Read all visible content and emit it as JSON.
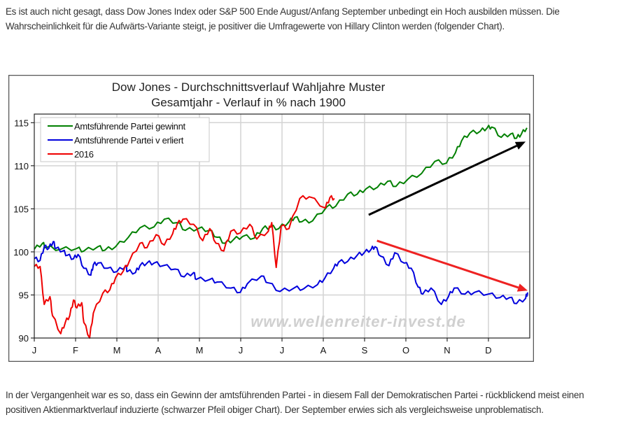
{
  "article": {
    "paragraph_1": "Es ist auch nicht gesagt, dass Dow Jones Index oder S&P 500 Ende August/Anfang September unbedingt ein Hoch ausbilden müssen. Die Wahrscheinlichkeit für die Aufwärts-Variante steigt, je positiver die Umfragewerte von Hillary Clinton werden (folgender Chart).",
    "paragraph_2": "In der Vergangenheit war es so, dass ein Gewinn der amtsführenden Partei - in diesem Fall der Demokratischen Partei - rückblickend meist einen positiven Aktienmarktverlauf induzierte (schwarzer Pfeil obiger Chart). Der September erwies sich als vergleichsweise unproblematisch."
  },
  "chart_data": {
    "type": "line",
    "title": [
      "Dow Jones - Durchschnittsverlauf Wahljahre Muster",
      "Gesamtjahr - Verlauf in % nach 1900"
    ],
    "xlabel": "",
    "ylabel": "",
    "x_tick_labels": [
      "J",
      "F",
      "M",
      "A",
      "M",
      "J",
      "J",
      "A",
      "S",
      "O",
      "N",
      "D"
    ],
    "xlim": [
      0,
      12
    ],
    "ylim": [
      90,
      116
    ],
    "y_ticks": [
      90,
      95,
      100,
      105,
      110,
      115
    ],
    "grid": true,
    "legend_placement": "top-left",
    "watermark": "www.wellenreiter-invest.de",
    "series": [
      {
        "name": "Amtsführende Partei gewinnt",
        "color": "#008000",
        "points": [
          [
            0,
            100.3
          ],
          [
            0.2,
            101
          ],
          [
            0.28,
            100.5
          ],
          [
            0.64,
            100.3
          ],
          [
            1.03,
            100.4
          ],
          [
            1.2,
            100.1
          ],
          [
            1.54,
            100.6
          ],
          [
            1.71,
            100.2
          ],
          [
            1.97,
            100.6
          ],
          [
            2.28,
            101.7
          ],
          [
            2.56,
            102.8
          ],
          [
            2.9,
            102.9
          ],
          [
            3.15,
            103.8
          ],
          [
            3.46,
            103.4
          ],
          [
            3.66,
            102.5
          ],
          [
            3.97,
            102.7
          ],
          [
            4.23,
            102.5
          ],
          [
            4.43,
            101.7
          ],
          [
            4.62,
            101
          ],
          [
            4.82,
            101.4
          ],
          [
            5.05,
            101.8
          ],
          [
            5.33,
            101.6
          ],
          [
            5.53,
            102.7
          ],
          [
            5.72,
            102.9
          ],
          [
            5.92,
            102.7
          ],
          [
            6.17,
            103.5
          ],
          [
            6.31,
            104
          ],
          [
            6.48,
            103.5
          ],
          [
            6.74,
            103.6
          ],
          [
            7.08,
            105.2
          ],
          [
            7.3,
            105.3
          ],
          [
            7.59,
            106.7
          ],
          [
            7.82,
            106.7
          ],
          [
            8.03,
            107.3
          ],
          [
            8.31,
            107.5
          ],
          [
            8.56,
            108.2
          ],
          [
            8.76,
            107.6
          ],
          [
            9.04,
            108.4
          ],
          [
            9.38,
            109.1
          ],
          [
            9.7,
            110.5
          ],
          [
            9.98,
            110.3
          ],
          [
            10.2,
            111.5
          ],
          [
            10.35,
            112.9
          ],
          [
            10.55,
            113.8
          ],
          [
            10.8,
            114
          ],
          [
            10.97,
            114.4
          ],
          [
            11.08,
            114.5
          ],
          [
            11.31,
            113.3
          ],
          [
            11.54,
            113.7
          ],
          [
            11.68,
            113.2
          ],
          [
            11.8,
            113.7
          ],
          [
            11.93,
            114.4
          ]
        ]
      },
      {
        "name": "Amtsführende Partei v erliert",
        "color": "#0000dd",
        "points": [
          [
            0,
            99.2
          ],
          [
            0.14,
            99
          ],
          [
            0.24,
            100.6
          ],
          [
            0.35,
            100.4
          ],
          [
            0.46,
            101.2
          ],
          [
            0.52,
            100.4
          ],
          [
            0.69,
            100.1
          ],
          [
            0.8,
            99.6
          ],
          [
            0.95,
            99.2
          ],
          [
            1.06,
            99.7
          ],
          [
            1.2,
            98.1
          ],
          [
            1.37,
            97.3
          ],
          [
            1.43,
            98.5
          ],
          [
            1.54,
            98.7
          ],
          [
            1.77,
            98.1
          ],
          [
            2,
            97.7
          ],
          [
            2.22,
            98.4
          ],
          [
            2.25,
            97.7
          ],
          [
            2.45,
            97.6
          ],
          [
            2.56,
            98.4
          ],
          [
            2.73,
            98.7
          ],
          [
            2.9,
            98.7
          ],
          [
            3.12,
            98.4
          ],
          [
            3.41,
            98
          ],
          [
            3.63,
            97.1
          ],
          [
            3.86,
            97.6
          ],
          [
            3.92,
            96.8
          ],
          [
            4.25,
            96.8
          ],
          [
            4.43,
            96.5
          ],
          [
            4.76,
            95.8
          ],
          [
            4.99,
            95.3
          ],
          [
            5.16,
            96.3
          ],
          [
            5.5,
            97.2
          ],
          [
            5.67,
            96.4
          ],
          [
            5.95,
            95.4
          ],
          [
            6.29,
            95.8
          ],
          [
            6.52,
            95.7
          ],
          [
            6.86,
            96.2
          ],
          [
            7.03,
            96.9
          ],
          [
            7.25,
            98.1
          ],
          [
            7.37,
            98.8
          ],
          [
            7.59,
            98.9
          ],
          [
            7.82,
            99.6
          ],
          [
            7.99,
            99.9
          ],
          [
            8.16,
            100.3
          ],
          [
            8.25,
            100.6
          ],
          [
            8.39,
            99.5
          ],
          [
            8.59,
            98.4
          ],
          [
            8.73,
            99.9
          ],
          [
            8.96,
            98.7
          ],
          [
            9.13,
            98.1
          ],
          [
            9.3,
            95.9
          ],
          [
            9.41,
            95.1
          ],
          [
            9.61,
            95.8
          ],
          [
            9.86,
            93.9
          ],
          [
            10.03,
            94.8
          ],
          [
            10.17,
            95.8
          ],
          [
            10.43,
            95.1
          ],
          [
            10.66,
            95.3
          ],
          [
            11,
            95.1
          ],
          [
            11.28,
            94.7
          ],
          [
            11.51,
            94.7
          ],
          [
            11.68,
            94
          ],
          [
            11.9,
            94.6
          ],
          [
            11.95,
            95.3
          ]
        ]
      },
      {
        "name": "2016",
        "color": "#ee0000",
        "points": [
          [
            0,
            98.3
          ],
          [
            0.14,
            98.3
          ],
          [
            0.24,
            93.9
          ],
          [
            0.38,
            94.8
          ],
          [
            0.44,
            92.6
          ],
          [
            0.64,
            90.5
          ],
          [
            0.75,
            91.8
          ],
          [
            0.86,
            92.6
          ],
          [
            0.95,
            94.4
          ],
          [
            1.03,
            93.5
          ],
          [
            1.15,
            94.1
          ],
          [
            1.2,
            91.8
          ],
          [
            1.34,
            90
          ],
          [
            1.43,
            92.9
          ],
          [
            1.66,
            95.2
          ],
          [
            1.83,
            95.6
          ],
          [
            1.97,
            97
          ],
          [
            2.16,
            97.8
          ],
          [
            2.3,
            98.9
          ],
          [
            2.56,
            101
          ],
          [
            2.73,
            100.5
          ],
          [
            2.95,
            102
          ],
          [
            3.15,
            100.8
          ],
          [
            3.35,
            102.1
          ],
          [
            3.46,
            103.2
          ],
          [
            3.6,
            103.8
          ],
          [
            3.86,
            103.2
          ],
          [
            4.08,
            101.3
          ],
          [
            4.25,
            102.7
          ],
          [
            4.4,
            101
          ],
          [
            4.59,
            100.1
          ],
          [
            4.76,
            102.4
          ],
          [
            4.99,
            102.2
          ],
          [
            5.22,
            103.2
          ],
          [
            5.39,
            101.5
          ],
          [
            5.67,
            102.4
          ],
          [
            5.75,
            103.4
          ],
          [
            5.86,
            98.2
          ],
          [
            5.98,
            103
          ],
          [
            6.17,
            102.7
          ],
          [
            6.43,
            106.2
          ],
          [
            6.66,
            106.4
          ],
          [
            7.05,
            105.1
          ],
          [
            7.16,
            106.3
          ],
          [
            7.27,
            106.2
          ]
        ]
      }
    ],
    "annotations": [
      {
        "type": "arrow",
        "color": "#000000",
        "from": [
          8.1,
          104.3
        ],
        "to": [
          11.9,
          112.8
        ]
      },
      {
        "type": "arrow",
        "color": "#ee2222",
        "from": [
          8.3,
          101.3
        ],
        "to": [
          11.95,
          95.5
        ]
      }
    ]
  }
}
